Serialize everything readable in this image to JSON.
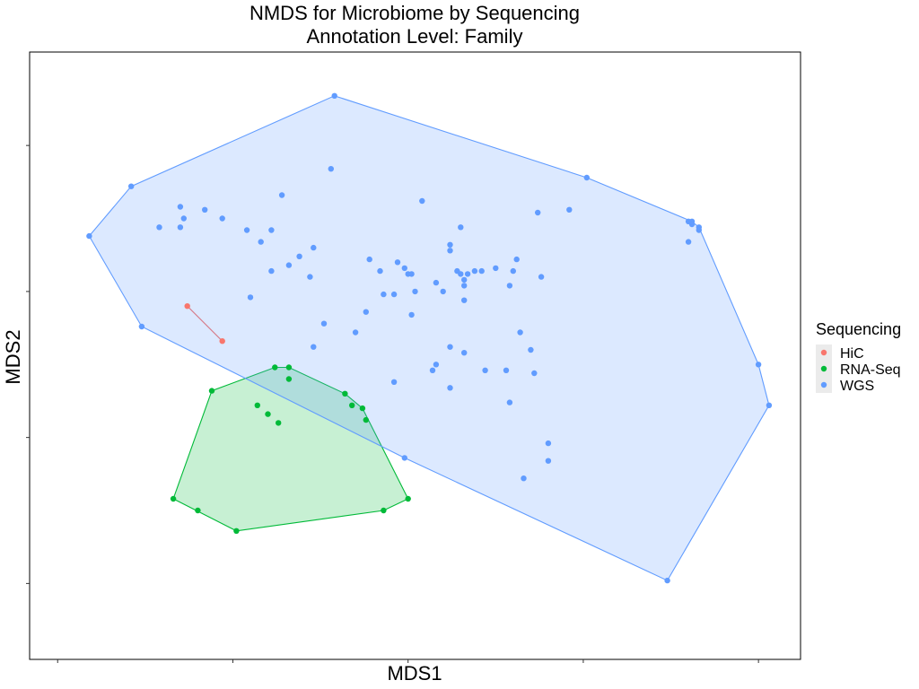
{
  "chart_data": {
    "type": "scatter",
    "title": "NMDS for Microbiome by Sequencing",
    "subtitle": "Annotation Level: Family",
    "xlabel": "MDS1",
    "ylabel": "MDS2",
    "xlim": [
      -0.08,
      2.12
    ],
    "ylim": [
      -0.26,
      1.82
    ],
    "grid": false,
    "hulls": true,
    "legend": {
      "title": "Sequencing",
      "placement": "right"
    },
    "series": [
      {
        "name": "HiC",
        "color": "#F8766D",
        "points": [
          [
            0.37,
            0.95
          ],
          [
            0.47,
            0.83
          ]
        ]
      },
      {
        "name": "RNA-Seq",
        "color": "#00BA38",
        "points": [
          [
            0.33,
            0.29
          ],
          [
            0.4,
            0.25
          ],
          [
            0.51,
            0.18
          ],
          [
            0.44,
            0.66
          ],
          [
            0.62,
            0.74
          ],
          [
            0.66,
            0.74
          ],
          [
            0.57,
            0.61
          ],
          [
            0.6,
            0.58
          ],
          [
            0.63,
            0.55
          ],
          [
            0.66,
            0.7
          ],
          [
            0.82,
            0.65
          ],
          [
            0.84,
            0.61
          ],
          [
            0.87,
            0.6
          ],
          [
            0.88,
            0.56
          ],
          [
            0.93,
            0.25
          ],
          [
            1.0,
            0.29
          ]
        ]
      },
      {
        "name": "WGS",
        "color": "#619CFF",
        "points": [
          [
            0.09,
            1.19
          ],
          [
            0.21,
            1.36
          ],
          [
            0.79,
            1.67
          ],
          [
            0.24,
            0.88
          ],
          [
            1.51,
            1.39
          ],
          [
            1.8,
            1.24
          ],
          [
            1.81,
            1.24
          ],
          [
            1.81,
            1.23
          ],
          [
            1.83,
            1.22
          ],
          [
            1.83,
            1.21
          ],
          [
            1.8,
            1.17
          ],
          [
            2.0,
            0.75
          ],
          [
            2.03,
            0.61
          ],
          [
            1.74,
            0.01
          ],
          [
            0.78,
            1.42
          ],
          [
            0.64,
            1.33
          ],
          [
            0.35,
            1.29
          ],
          [
            0.42,
            1.28
          ],
          [
            0.36,
            1.25
          ],
          [
            0.47,
            1.25
          ],
          [
            0.29,
            1.22
          ],
          [
            0.35,
            1.22
          ],
          [
            0.54,
            1.21
          ],
          [
            0.61,
            1.21
          ],
          [
            0.58,
            1.17
          ],
          [
            0.73,
            1.15
          ],
          [
            1.04,
            1.31
          ],
          [
            1.37,
            1.27
          ],
          [
            1.46,
            1.28
          ],
          [
            1.15,
            1.22
          ],
          [
            1.12,
            1.16
          ],
          [
            1.12,
            1.14
          ],
          [
            0.89,
            1.11
          ],
          [
            0.97,
            1.1
          ],
          [
            1.31,
            1.11
          ],
          [
            0.69,
            1.12
          ],
          [
            0.66,
            1.09
          ],
          [
            0.72,
            1.05
          ],
          [
            0.61,
            1.07
          ],
          [
            0.92,
            1.07
          ],
          [
            0.99,
            1.08
          ],
          [
            1.0,
            1.06
          ],
          [
            1.01,
            1.06
          ],
          [
            1.14,
            1.07
          ],
          [
            1.15,
            1.06
          ],
          [
            1.17,
            1.06
          ],
          [
            1.19,
            1.07
          ],
          [
            1.21,
            1.07
          ],
          [
            1.25,
            1.08
          ],
          [
            1.3,
            1.07
          ],
          [
            1.16,
            1.04
          ],
          [
            1.38,
            1.05
          ],
          [
            1.08,
            1.03
          ],
          [
            1.16,
            1.02
          ],
          [
            1.29,
            1.02
          ],
          [
            0.93,
            0.99
          ],
          [
            0.96,
            0.99
          ],
          [
            1.02,
            1.0
          ],
          [
            1.1,
            1.0
          ],
          [
            1.16,
            0.97
          ],
          [
            0.55,
            0.98
          ],
          [
            0.88,
            0.93
          ],
          [
            1.01,
            0.92
          ],
          [
            0.85,
            0.86
          ],
          [
            1.32,
            0.86
          ],
          [
            0.76,
            0.89
          ],
          [
            0.73,
            0.81
          ],
          [
            1.12,
            0.81
          ],
          [
            1.16,
            0.79
          ],
          [
            1.35,
            0.8
          ],
          [
            1.08,
            0.75
          ],
          [
            1.07,
            0.73
          ],
          [
            1.22,
            0.73
          ],
          [
            1.28,
            0.73
          ],
          [
            1.36,
            0.72
          ],
          [
            0.96,
            0.69
          ],
          [
            1.12,
            0.67
          ],
          [
            1.29,
            0.62
          ],
          [
            1.4,
            0.48
          ],
          [
            1.4,
            0.42
          ],
          [
            1.33,
            0.36
          ],
          [
            0.99,
            0.43
          ]
        ]
      }
    ]
  }
}
